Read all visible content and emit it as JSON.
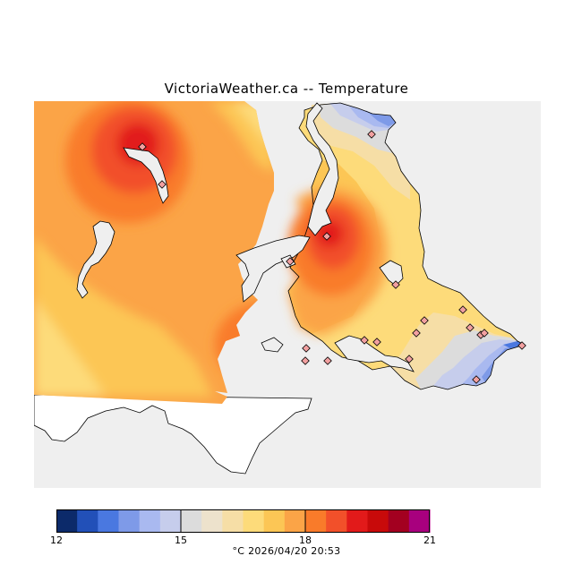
{
  "title": "VictoriaWeather.ca -- Temperature",
  "unit": "°C",
  "timestamp": "2026/04/20 20:53",
  "colorbar": {
    "min": 12,
    "max": 21,
    "tick_labels": [
      "12",
      "15",
      "18",
      "21"
    ],
    "colors": [
      "#0c2a6a",
      "#2250b8",
      "#4a78e0",
      "#7e9ae8",
      "#a9b9f0",
      "#c6cdec",
      "#dcdcdc",
      "#ede2cc",
      "#f6dea6",
      "#fddb7a",
      "#fcc655",
      "#fba447",
      "#f97b2a",
      "#f2502a",
      "#e21a1a",
      "#c80a0a",
      "#a30020",
      "#a8007e"
    ]
  },
  "map": {
    "background_color": "#efefef",
    "land_color": "#ffffff",
    "station_count": 20
  }
}
